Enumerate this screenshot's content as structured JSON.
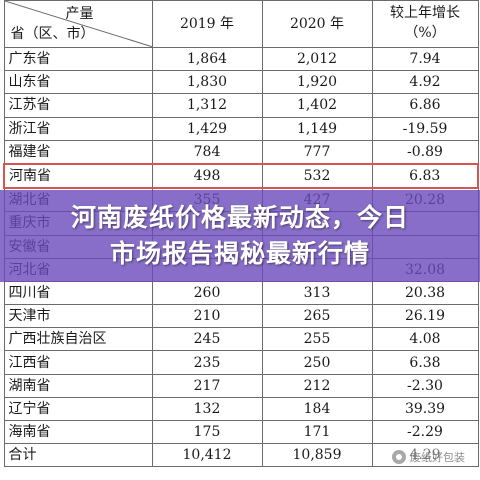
{
  "header": {
    "corner_top": "产量",
    "corner_bottom": "省（区、市）",
    "col_2019": "2019 年",
    "col_2020": "2020 年",
    "col_growth_line1": "较上年增长",
    "col_growth_line2": "（%）"
  },
  "rows": [
    {
      "name": "广东省",
      "v2019": "1,864",
      "v2020": "2,012",
      "growth": "7.94"
    },
    {
      "name": "山东省",
      "v2019": "1,830",
      "v2020": "1,920",
      "growth": "4.92"
    },
    {
      "name": "江苏省",
      "v2019": "1,312",
      "v2020": "1,402",
      "growth": "6.86"
    },
    {
      "name": "浙江省",
      "v2019": "1,429",
      "v2020": "1,149",
      "growth": "-19.59"
    },
    {
      "name": "福建省",
      "v2019": "784",
      "v2020": "777",
      "growth": "-0.89"
    },
    {
      "name": "河南省",
      "v2019": "498",
      "v2020": "532",
      "growth": "6.83"
    },
    {
      "name": "湖北省",
      "v2019": "355",
      "v2020": "427",
      "growth": "20.28"
    },
    {
      "name": "重庆市",
      "v2019": "",
      "v2020": "",
      "growth": ""
    },
    {
      "name": "安徽省",
      "v2019": "",
      "v2020": "",
      "growth": ""
    },
    {
      "name": "河北省",
      "v2019": "",
      "v2020": "",
      "growth": "32.08"
    },
    {
      "name": "四川省",
      "v2019": "260",
      "v2020": "313",
      "growth": "20.38"
    },
    {
      "name": "天津市",
      "v2019": "210",
      "v2020": "265",
      "growth": "26.19"
    },
    {
      "name": "广西壮族自治区",
      "v2019": "245",
      "v2020": "255",
      "growth": "4.08"
    },
    {
      "name": "江西省",
      "v2019": "235",
      "v2020": "250",
      "growth": "6.38"
    },
    {
      "name": "湖南省",
      "v2019": "217",
      "v2020": "212",
      "growth": "-2.30"
    },
    {
      "name": "辽宁省",
      "v2019": "132",
      "v2020": "184",
      "growth": "39.39"
    },
    {
      "name": "海南省",
      "v2019": "175",
      "v2020": "171",
      "growth": "-2.29"
    },
    {
      "name": "合计",
      "v2019": "10,412",
      "v2020": "10,859",
      "growth": "4.29"
    }
  ],
  "highlight_row": "河南省",
  "highlight_color": "#d9534f",
  "banner": {
    "line1": "河南废纸价格最新动态，今日",
    "line2": "市场报告揭秘最新行情",
    "background": "#6a4aba"
  },
  "watermark": {
    "icon": "wechat-account-icon",
    "text": "废纸好包装"
  }
}
